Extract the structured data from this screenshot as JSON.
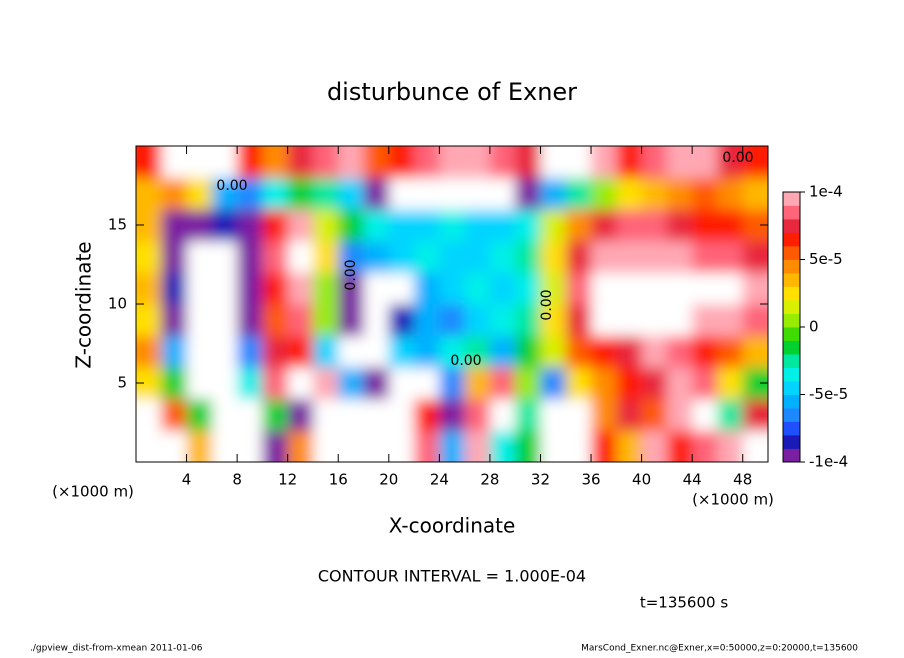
{
  "chart_data": {
    "type": "heatmap",
    "title": "disturbunce of Exner",
    "x_label": "X-coordinate",
    "y_label": "Z-coordinate",
    "x_unit": "(×1000 m)",
    "y_unit": "(×1000 m)",
    "contour_interval": "CONTOUR INTERVAL = 1.000E-04",
    "time_label": "t=135600 s",
    "footer_left": "./gpview_dist-from-xmean  2011-01-06",
    "footer_right": "MarsCond_Exner.nc@Exner,x=0:50000,z=0:20000,t=135600",
    "contour_labels": [
      "0.00",
      "0.00",
      "0.00",
      "0.00",
      "0.00"
    ],
    "xlim": [
      0,
      50
    ],
    "ylim": [
      0,
      20
    ],
    "xticks": [
      4,
      8,
      12,
      16,
      20,
      24,
      28,
      32,
      36,
      40,
      44,
      48
    ],
    "yticks": [
      5,
      10,
      15
    ],
    "x": [
      1,
      3,
      5,
      7,
      9,
      11,
      13,
      15,
      17,
      19,
      21,
      23,
      25,
      27,
      29,
      31,
      33,
      35,
      37,
      39,
      41,
      43,
      45,
      47,
      49
    ],
    "y": [
      1,
      3,
      5,
      7,
      9,
      11,
      13,
      15,
      17,
      19
    ],
    "values": [
      [
        0.00013,
        0.00013,
        3e-05,
        0.00013,
        0.00013,
        -9e-05,
        4e-05,
        0.00013,
        0.00013,
        -0.00013,
        -0.00013,
        8e-05,
        -6e-05,
        0.0001,
        -4e-05,
        -2e-05,
        0.00013,
        0.00013,
        6e-05,
        3e-05,
        9e-05,
        6e-05,
        8e-05,
        0.0001,
        0.00013
      ],
      [
        0.00013,
        5e-05,
        -2e-05,
        0.00013,
        0.00013,
        -2e-05,
        -9e-05,
        0.00013,
        0.00013,
        -0.00013,
        -0.00013,
        6e-05,
        -0.0001,
        8e-05,
        0.00013,
        -3e-05,
        0.00013,
        0.00013,
        4e-05,
        7e-05,
        5e-05,
        9e-05,
        0.00013,
        -3e-05,
        7e-05
      ],
      [
        2e-05,
        -2e-05,
        -0.00013,
        -0.00013,
        -4e-05,
        8e-05,
        0.00013,
        9e-05,
        -6e-05,
        -9e-05,
        0.00013,
        0.00013,
        -7e-05,
        3e-05,
        8e-05,
        0,
        -7e-05,
        2e-05,
        4e-05,
        6e-05,
        7e-05,
        9e-05,
        8e-05,
        2e-05,
        -2e-05
      ],
      [
        4e-05,
        -6e-05,
        -0.00013,
        -0.00013,
        -7e-05,
        7e-05,
        6e-05,
        -5e-05,
        -0.00011,
        -0.00013,
        -5e-05,
        -6e-05,
        -4e-05,
        -3e-05,
        -6e-05,
        -2e-05,
        1e-05,
        5e-05,
        6e-05,
        7e-05,
        9e-05,
        8e-05,
        6e-05,
        5e-05,
        3e-05
      ],
      [
        2e-05,
        -9e-05,
        -0.00013,
        -0.00013,
        -9e-05,
        5e-05,
        8e-05,
        0,
        -0.0001,
        -0.00012,
        -8e-05,
        -6e-05,
        -7e-05,
        -5e-05,
        -4e-05,
        -3e-05,
        2e-05,
        7e-05,
        0.00013,
        0.00013,
        0.00013,
        0.00013,
        0.0001,
        9e-05,
        8e-05
      ],
      [
        3e-05,
        -8e-05,
        -0.00013,
        -0.00013,
        -0.0001,
        6e-05,
        0.0001,
        0,
        -9e-05,
        -0.00011,
        -0.00013,
        -6e-05,
        -5e-05,
        -4e-05,
        -5e-05,
        -4e-05,
        1e-05,
        8e-05,
        0.00013,
        0.00013,
        0.00013,
        0.00013,
        0.00013,
        0.00011,
        9e-05
      ],
      [
        2e-05,
        -9e-05,
        -0.00013,
        -0.00013,
        -9e-05,
        8e-05,
        0.00013,
        2e-05,
        -7e-05,
        -6e-05,
        -5e-05,
        -4e-05,
        -5e-05,
        -5e-05,
        -4e-05,
        -3e-05,
        2e-05,
        7e-05,
        9e-05,
        9e-05,
        9e-05,
        9e-05,
        8e-05,
        8e-05,
        7e-05
      ],
      [
        3e-05,
        -9e-05,
        -0.0001,
        -8e-05,
        -9e-05,
        6e-05,
        9e-05,
        1e-05,
        -2e-05,
        -4e-05,
        -5e-05,
        -5e-05,
        -4e-05,
        -5e-05,
        -5e-05,
        -4e-05,
        1e-05,
        4e-05,
        7e-05,
        8e-05,
        8e-05,
        7e-05,
        6e-05,
        6e-05,
        5e-05
      ],
      [
        3e-05,
        4e-05,
        2e-05,
        -6e-05,
        -7e-05,
        -4e-05,
        -2e-05,
        -3e-05,
        -5e-05,
        -9e-05,
        -0.00011,
        -0.00012,
        -0.00013,
        -0.00013,
        -0.00012,
        -0.0001,
        -6e-05,
        -3e-05,
        0,
        2e-05,
        3e-05,
        4e-05,
        5e-05,
        4e-05,
        3e-05
      ],
      [
        6e-05,
        0.00013,
        0.00013,
        0.00013,
        6e-05,
        4e-05,
        7e-05,
        8e-05,
        9e-05,
        5e-05,
        6e-05,
        8e-05,
        9e-05,
        0.0001,
        8e-05,
        7e-05,
        0.00013,
        0.00013,
        9e-05,
        6e-05,
        8e-05,
        0.0001,
        9e-05,
        7e-05,
        6e-05
      ]
    ],
    "clim": [
      -0.0001,
      0.0001
    ],
    "colorbar_ticks": [
      {
        "value": 0.0001,
        "label": "1e-4"
      },
      {
        "value": 5e-05,
        "label": "5e-5"
      },
      0,
      {
        "value": -5e-05,
        "label": "-5e-5"
      },
      {
        "value": -0.0001,
        "label": "-1e-4"
      }
    ],
    "colormap": [
      "#7a1fa2",
      "#1a1ab8",
      "#1f4fff",
      "#1e88ff",
      "#00b0ff",
      "#00d4ff",
      "#00f0e8",
      "#00e8a0",
      "#00d030",
      "#40dc00",
      "#98ec00",
      "#d8f000",
      "#ffe000",
      "#ffb800",
      "#ff8c00",
      "#ff5a00",
      "#ff1e00",
      "#e8283c",
      "#ff6478",
      "#ffa8b4"
    ],
    "out_of_range_color": "#ffffff"
  }
}
